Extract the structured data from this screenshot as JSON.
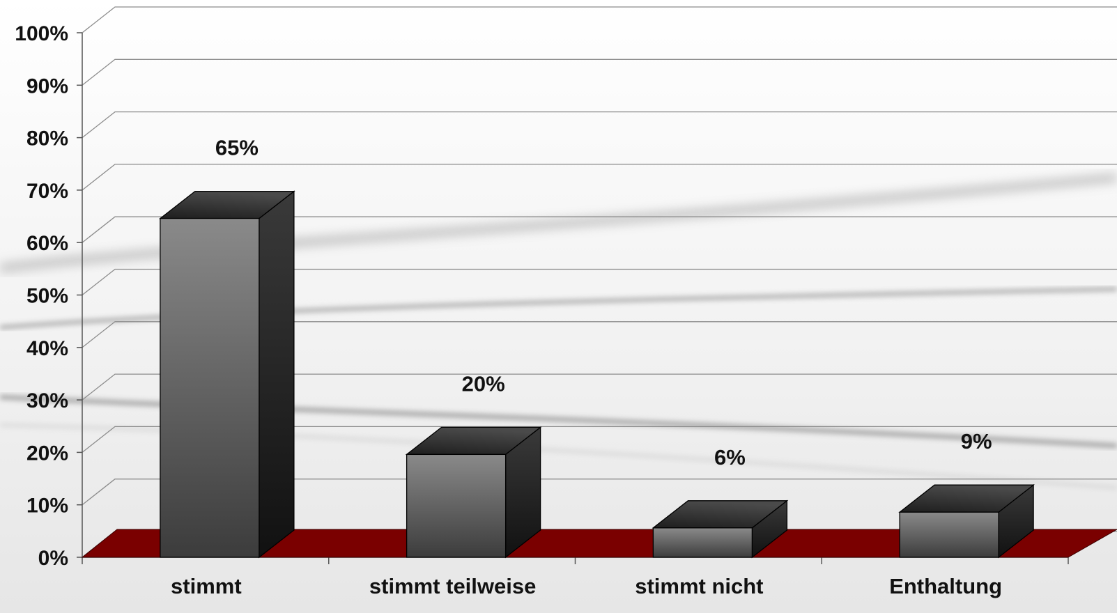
{
  "chart_data": {
    "type": "bar",
    "style": "3d",
    "categories": [
      "stimmt",
      "stimmt teilweise",
      "stimmt nicht",
      "Enthaltung"
    ],
    "values": [
      65,
      20,
      6,
      9
    ],
    "data_labels": [
      "65%",
      "20%",
      "6%",
      "9%"
    ],
    "ylim": [
      0,
      100
    ],
    "yticks": [
      0,
      10,
      20,
      30,
      40,
      50,
      60,
      70,
      80,
      90,
      100
    ],
    "ytick_labels": [
      "0%",
      "10%",
      "20%",
      "30%",
      "40%",
      "50%",
      "60%",
      "70%",
      "80%",
      "90%",
      "100%"
    ],
    "title": "",
    "xlabel": "",
    "ylabel": "",
    "grid": true,
    "legend": "none",
    "colors": {
      "bar": "#5a5a5a",
      "floor": "#7a0000",
      "grid": "#888888"
    }
  }
}
